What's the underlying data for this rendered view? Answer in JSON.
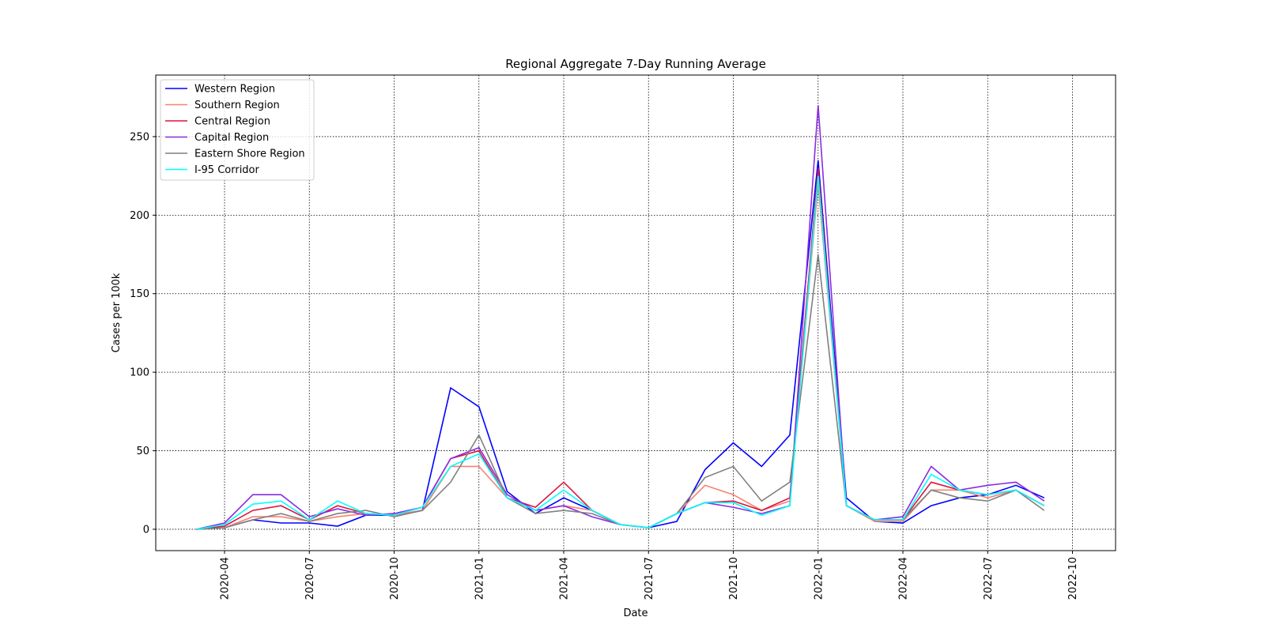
{
  "chart_data": {
    "type": "line",
    "title": "Regional Aggregate 7-Day Running Average",
    "xlabel": "Date",
    "ylabel": "Cases per 100k",
    "x": [
      "2020-03",
      "2020-04",
      "2020-05",
      "2020-06",
      "2020-07",
      "2020-08",
      "2020-09",
      "2020-10",
      "2020-11",
      "2020-12",
      "2021-01",
      "2021-02",
      "2021-03",
      "2021-04",
      "2021-05",
      "2021-06",
      "2021-07",
      "2021-08",
      "2021-09",
      "2021-10",
      "2021-11",
      "2021-12",
      "2022-01",
      "2022-02",
      "2022-03",
      "2022-04",
      "2022-05",
      "2022-06",
      "2022-07",
      "2022-08",
      "2022-09"
    ],
    "series": [
      {
        "name": "Western Region",
        "color": "#0000ff",
        "values": [
          0,
          1,
          6,
          4,
          4,
          2,
          9,
          9,
          12,
          90,
          78,
          24,
          10,
          20,
          12,
          3,
          1,
          5,
          38,
          55,
          40,
          60,
          235,
          20,
          5,
          4,
          15,
          20,
          22,
          28,
          20
        ]
      },
      {
        "name": "Southern Region",
        "color": "#fa8072",
        "values": [
          0,
          1,
          8,
          8,
          5,
          8,
          10,
          9,
          12,
          40,
          40,
          20,
          12,
          15,
          12,
          3,
          1,
          10,
          28,
          22,
          12,
          18,
          220,
          15,
          5,
          5,
          25,
          25,
          20,
          25,
          15
        ]
      },
      {
        "name": "Central Region",
        "color": "#dc143c",
        "values": [
          0,
          2,
          12,
          15,
          6,
          15,
          10,
          9,
          14,
          45,
          50,
          20,
          14,
          30,
          12,
          3,
          1,
          10,
          17,
          18,
          12,
          20,
          230,
          15,
          6,
          6,
          30,
          25,
          22,
          25,
          15
        ]
      },
      {
        "name": "Capital Region",
        "color": "#8a2be2",
        "values": [
          0,
          4,
          22,
          22,
          8,
          13,
          9,
          10,
          14,
          45,
          52,
          22,
          12,
          15,
          8,
          3,
          1,
          10,
          17,
          14,
          10,
          15,
          270,
          15,
          6,
          8,
          40,
          25,
          28,
          30,
          18
        ]
      },
      {
        "name": "Eastern Shore Region",
        "color": "#808080",
        "values": [
          0,
          1,
          6,
          10,
          5,
          10,
          12,
          8,
          12,
          30,
          60,
          20,
          10,
          12,
          10,
          3,
          1,
          10,
          33,
          40,
          18,
          30,
          175,
          15,
          6,
          6,
          25,
          20,
          18,
          25,
          12
        ]
      },
      {
        "name": "I-95 Corridor",
        "color": "#00ffff",
        "values": [
          0,
          3,
          16,
          18,
          6,
          18,
          10,
          9,
          14,
          40,
          48,
          20,
          12,
          25,
          12,
          3,
          1,
          10,
          17,
          17,
          9,
          15,
          225,
          15,
          6,
          6,
          35,
          25,
          22,
          25,
          15
        ]
      }
    ],
    "ylim": [
      -13.6,
      289.2
    ],
    "yticks": [
      0,
      50,
      100,
      150,
      200,
      250
    ],
    "xticks": [
      "2020-04",
      "2020-07",
      "2020-10",
      "2021-01",
      "2021-04",
      "2021-07",
      "2021-10",
      "2022-01",
      "2022-04",
      "2022-07",
      "2022-10"
    ],
    "grid": true,
    "legend": "upper-left"
  }
}
